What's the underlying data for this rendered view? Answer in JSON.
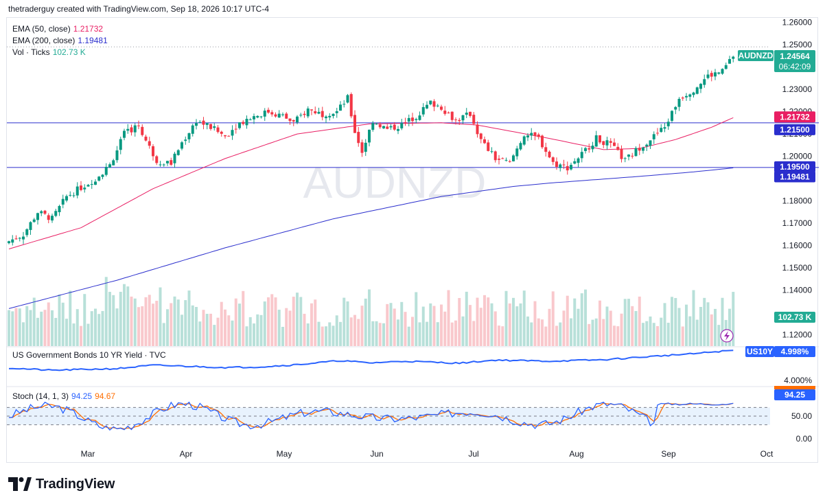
{
  "header": {
    "attribution": "thetraderguy created with TradingView.com, Sep 18, 2026 10:17 UTC-4"
  },
  "watermark": "AUDNZD",
  "legend": {
    "ema50": {
      "label": "EMA (50, close)",
      "value": "1.21732",
      "color": "#e91e63"
    },
    "ema200": {
      "label": "EMA (200, close)",
      "value": "1.19481",
      "color": "#2a2ecd"
    },
    "vol": {
      "label": "Vol · Ticks",
      "value": "102.73 K",
      "color": "#22ab94"
    }
  },
  "price_tag": {
    "symbol": "AUDNZD",
    "price": "1.24564",
    "countdown": "06:42:09",
    "color": "#22ab94"
  },
  "level_tags": [
    {
      "label": "1.21732",
      "color": "#e91e63"
    },
    {
      "label": "1.21500",
      "color": "#2a2ecd"
    },
    {
      "label": "1.19500",
      "color": "#2a2ecd"
    },
    {
      "label": "1.19481",
      "color": "#2a2ecd"
    }
  ],
  "volume_tag": {
    "label": "102.73 K",
    "color": "#22ab94"
  },
  "us10y": {
    "title": "US Government Bonds 10 YR Yield · TVC",
    "symbol": "US10Y",
    "value": "4.998%",
    "axis_label": "4.000%",
    "color": "#2962ff"
  },
  "stoch": {
    "title": "Stoch (14, 1, 3)",
    "k_value": "94.25",
    "d_value": "94.67",
    "k_color": "#2962ff",
    "d_color": "#ff6d00",
    "tag": "94.25",
    "axis_labels": [
      "50.00",
      "0.00"
    ]
  },
  "brand": {
    "name": "TradingView"
  },
  "chart_data": {
    "type": "candlestick",
    "symbol": "AUDNZD",
    "y_axis_ticks": [
      "1.26000",
      "1.25000",
      "1.23000",
      "1.22000",
      "1.21000",
      "1.20000",
      "1.18000",
      "1.17000",
      "1.16000",
      "1.15000",
      "1.14000",
      "1.12000"
    ],
    "x_axis_labels": [
      "Mar",
      "Apr",
      "May",
      "Jun",
      "Jul",
      "Aug",
      "Sep",
      "Oct"
    ],
    "ylim": [
      1.115,
      1.262
    ],
    "horizontal_levels": [
      1.215,
      1.195
    ],
    "last_price": 1.24564,
    "close_trajectory": [
      [
        0,
        1.162
      ],
      [
        4,
        1.165
      ],
      [
        8,
        1.175
      ],
      [
        12,
        1.172
      ],
      [
        16,
        1.182
      ],
      [
        20,
        1.186
      ],
      [
        24,
        1.19
      ],
      [
        28,
        1.196
      ],
      [
        32,
        1.21
      ],
      [
        36,
        1.214
      ],
      [
        38,
        1.207
      ],
      [
        41,
        1.198
      ],
      [
        45,
        1.197
      ],
      [
        48,
        1.206
      ],
      [
        52,
        1.216
      ],
      [
        56,
        1.213
      ],
      [
        60,
        1.209
      ],
      [
        64,
        1.215
      ],
      [
        68,
        1.218
      ],
      [
        72,
        1.22
      ],
      [
        76,
        1.218
      ],
      [
        79,
        1.215
      ],
      [
        83,
        1.221
      ],
      [
        87,
        1.219
      ],
      [
        91,
        1.22
      ],
      [
        94,
        1.226
      ],
      [
        96,
        1.211
      ],
      [
        98,
        1.202
      ],
      [
        101,
        1.216
      ],
      [
        105,
        1.212
      ],
      [
        109,
        1.214
      ],
      [
        113,
        1.218
      ],
      [
        117,
        1.224
      ],
      [
        120,
        1.222
      ],
      [
        124,
        1.216
      ],
      [
        128,
        1.219
      ],
      [
        131,
        1.207
      ],
      [
        135,
        1.199
      ],
      [
        139,
        1.197
      ],
      [
        143,
        1.21
      ],
      [
        147,
        1.208
      ],
      [
        151,
        1.197
      ],
      [
        155,
        1.195
      ],
      [
        159,
        1.201
      ],
      [
        163,
        1.208
      ],
      [
        167,
        1.205
      ],
      [
        171,
        1.198
      ],
      [
        175,
        1.204
      ],
      [
        179,
        1.209
      ],
      [
        182,
        1.213
      ],
      [
        186,
        1.226
      ],
      [
        190,
        1.23
      ],
      [
        194,
        1.236
      ],
      [
        198,
        1.238
      ],
      [
        201,
        1.245
      ]
    ],
    "ema50_trajectory": [
      [
        0,
        1.1585
      ],
      [
        20,
        1.168
      ],
      [
        40,
        1.1855
      ],
      [
        60,
        1.199
      ],
      [
        80,
        1.21
      ],
      [
        100,
        1.2145
      ],
      [
        120,
        1.215
      ],
      [
        130,
        1.214
      ],
      [
        150,
        1.208
      ],
      [
        165,
        1.203
      ],
      [
        175,
        1.2035
      ],
      [
        185,
        1.2075
      ],
      [
        195,
        1.213
      ],
      [
        201,
        1.2173
      ]
    ],
    "ema200_trajectory": [
      [
        0,
        1.1318
      ],
      [
        30,
        1.1445
      ],
      [
        60,
        1.159
      ],
      [
        90,
        1.172
      ],
      [
        120,
        1.182
      ],
      [
        140,
        1.1865
      ],
      [
        150,
        1.188
      ],
      [
        160,
        1.1892
      ],
      [
        175,
        1.191
      ],
      [
        190,
        1.193
      ],
      [
        201,
        1.1948
      ]
    ],
    "us10y_range": [
      3.9,
      5.1
    ],
    "us10y_trajectory": [
      [
        0,
        4.38
      ],
      [
        12,
        4.3
      ],
      [
        20,
        4.33
      ],
      [
        30,
        4.36
      ],
      [
        40,
        4.48
      ],
      [
        50,
        4.44
      ],
      [
        60,
        4.4
      ],
      [
        70,
        4.42
      ],
      [
        80,
        4.5
      ],
      [
        92,
        4.64
      ],
      [
        100,
        4.56
      ],
      [
        110,
        4.62
      ],
      [
        125,
        4.55
      ],
      [
        135,
        4.66
      ],
      [
        150,
        4.62
      ],
      [
        165,
        4.67
      ],
      [
        180,
        4.8
      ],
      [
        190,
        4.88
      ],
      [
        195,
        4.94
      ],
      [
        201,
        4.998
      ]
    ],
    "stoch_ylim": [
      0,
      100
    ],
    "stoch_bands": [
      80,
      50,
      20
    ],
    "stoch_k_last": 94.25,
    "stoch_d_last": 94.67
  }
}
